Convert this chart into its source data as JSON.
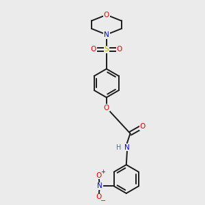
{
  "background_color": "#ebebeb",
  "bond_color": "#1a1a1a",
  "bond_width": 1.4,
  "atom_colors": {
    "C": "#1a1a1a",
    "N": "#0000ee",
    "O": "#ee0000",
    "S": "#bbbb00",
    "H": "#2f8080"
  },
  "figsize": [
    3.0,
    3.0
  ],
  "dpi": 100,
  "xlim": [
    0,
    10
  ],
  "ylim": [
    0,
    10
  ]
}
